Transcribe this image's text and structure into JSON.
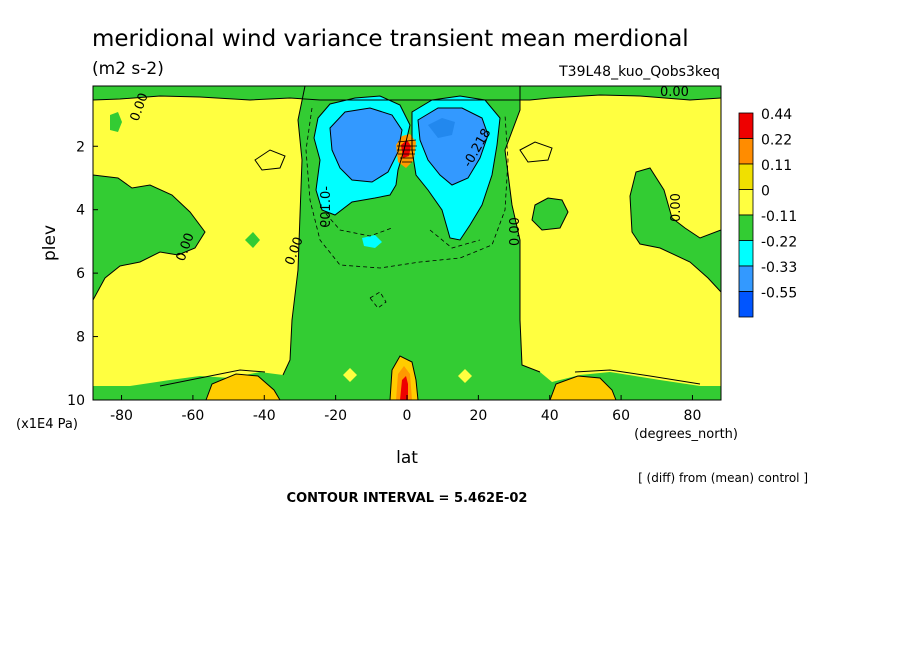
{
  "chart_data": {
    "type": "heatmap",
    "title": "meridional wind variance transient mean merdional",
    "units": "(m2 s-2)",
    "run_label": "T39L48_kuo_Qobs3keq",
    "xlabel": "lat",
    "x_units": "(degrees_north)",
    "ylabel": "plev",
    "y_units": "(x1E4 Pa)",
    "xlim": [
      -88,
      88
    ],
    "ylim": [
      10,
      0.1
    ],
    "x_ticks": [
      -80,
      -60,
      -40,
      -20,
      0,
      20,
      40,
      60,
      80
    ],
    "y_ticks": [
      2,
      4,
      6,
      8,
      10
    ],
    "contour_interval_text": "CONTOUR INTERVAL = 5.462E-02",
    "contour_labels": [
      "0.00",
      "0.00",
      "0.00",
      "0.00",
      "0.00",
      "0.00",
      "0.00",
      "-0.109",
      "-0.218"
    ],
    "colorbar": {
      "levels": [
        "0.44",
        "0.22",
        "0.11",
        "0",
        "-0.11",
        "-0.22",
        "-0.33",
        "-0.55"
      ],
      "colors": [
        "#ee0000",
        "#ff8c00",
        "#f0e000",
        "#ffff40",
        "#33cc33",
        "#00ffff",
        "#3399ff",
        "#0055ff"
      ]
    },
    "palette": {
      "yellow": "#ffff40",
      "green": "#33cc33",
      "cyan": "#00ffff",
      "blue1": "#3399ff",
      "blue2": "#2288ee",
      "orange": "#ff9900",
      "gold": "#ffcc00",
      "red": "#ee0000"
    }
  },
  "footer": {
    "diff_note": "[ (diff) from (mean) control ]"
  }
}
